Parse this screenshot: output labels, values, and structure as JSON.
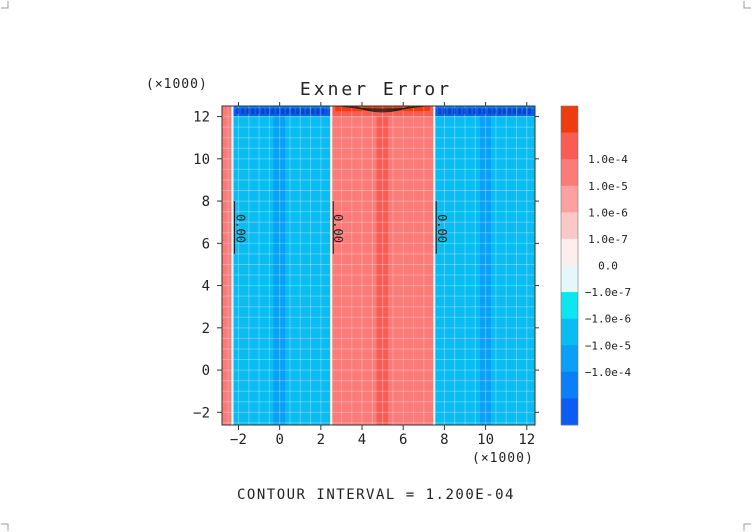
{
  "chart_data": {
    "type": "heatmap",
    "title": "Exner Error",
    "x_scale_label": "(×1000)",
    "y_scale_label": "(×1000)",
    "xlim": [
      -2.8,
      12.4
    ],
    "ylim": [
      -2.6,
      12.5
    ],
    "x_ticks": [
      -2,
      0,
      2,
      4,
      6,
      8,
      10,
      12
    ],
    "x_tick_labels": [
      "−2",
      "0",
      "2",
      "4",
      "6",
      "8",
      "10",
      "12"
    ],
    "y_ticks": [
      -2,
      0,
      2,
      4,
      6,
      8,
      10,
      12
    ],
    "y_tick_labels": [
      "−2",
      "0",
      "2",
      "4",
      "6",
      "8",
      "10",
      "12"
    ],
    "grid": true,
    "footer": "CONTOUR INTERVAL = 1.200E-04",
    "colorbar": {
      "levels": [
        {
          "label": "",
          "color": "#f03a0f"
        },
        {
          "label": "1.0e-4",
          "color": "#fa5c55"
        },
        {
          "label": "1.0e-5",
          "color": "#fa7b78"
        },
        {
          "label": "1.0e-6",
          "color": "#fca1a0"
        },
        {
          "label": "1.0e-7",
          "color": "#fcc8c7"
        },
        {
          "label": "0.0",
          "color": "#fdeeee"
        },
        {
          "label": "−1.0e-7",
          "color": "#e6f7fb"
        },
        {
          "label": "−1.0e-6",
          "color": "#0be6f0"
        },
        {
          "label": "−1.0e-5",
          "color": "#09bdf3"
        },
        {
          "label": "−1.0e-4",
          "color": "#0aa0f5"
        },
        {
          "label": "",
          "color": "#0a7ff7"
        },
        {
          "label": "",
          "color": "#0a5cf5"
        }
      ]
    },
    "regions": [
      {
        "x0": -2.8,
        "x1": -2.3,
        "color": "#fa7b78"
      },
      {
        "x0": -2.3,
        "x1": -0.3,
        "color": "#09bdf3"
      },
      {
        "x0": -0.3,
        "x1": 0.3,
        "color": "#0aa0f5"
      },
      {
        "x0": 0.3,
        "x1": 2.5,
        "color": "#09bdf3"
      },
      {
        "x0": 2.5,
        "x1": 4.7,
        "color": "#fa7b78"
      },
      {
        "x0": 4.7,
        "x1": 5.3,
        "color": "#fa5c55"
      },
      {
        "x0": 5.3,
        "x1": 7.5,
        "color": "#fa7b78"
      },
      {
        "x0": 7.5,
        "x1": 9.7,
        "color": "#09bdf3"
      },
      {
        "x0": 9.7,
        "x1": 10.3,
        "color": "#0aa0f5"
      },
      {
        "x0": 10.3,
        "x1": 12.4,
        "color": "#09bdf3"
      }
    ],
    "contour_labels": [
      {
        "x": -2.1,
        "y": 6.7,
        "text": "0.00"
      },
      {
        "x": 2.65,
        "y": 6.7,
        "text": "0.00"
      },
      {
        "x": 7.7,
        "y": 6.7,
        "text": "0.00"
      }
    ]
  }
}
